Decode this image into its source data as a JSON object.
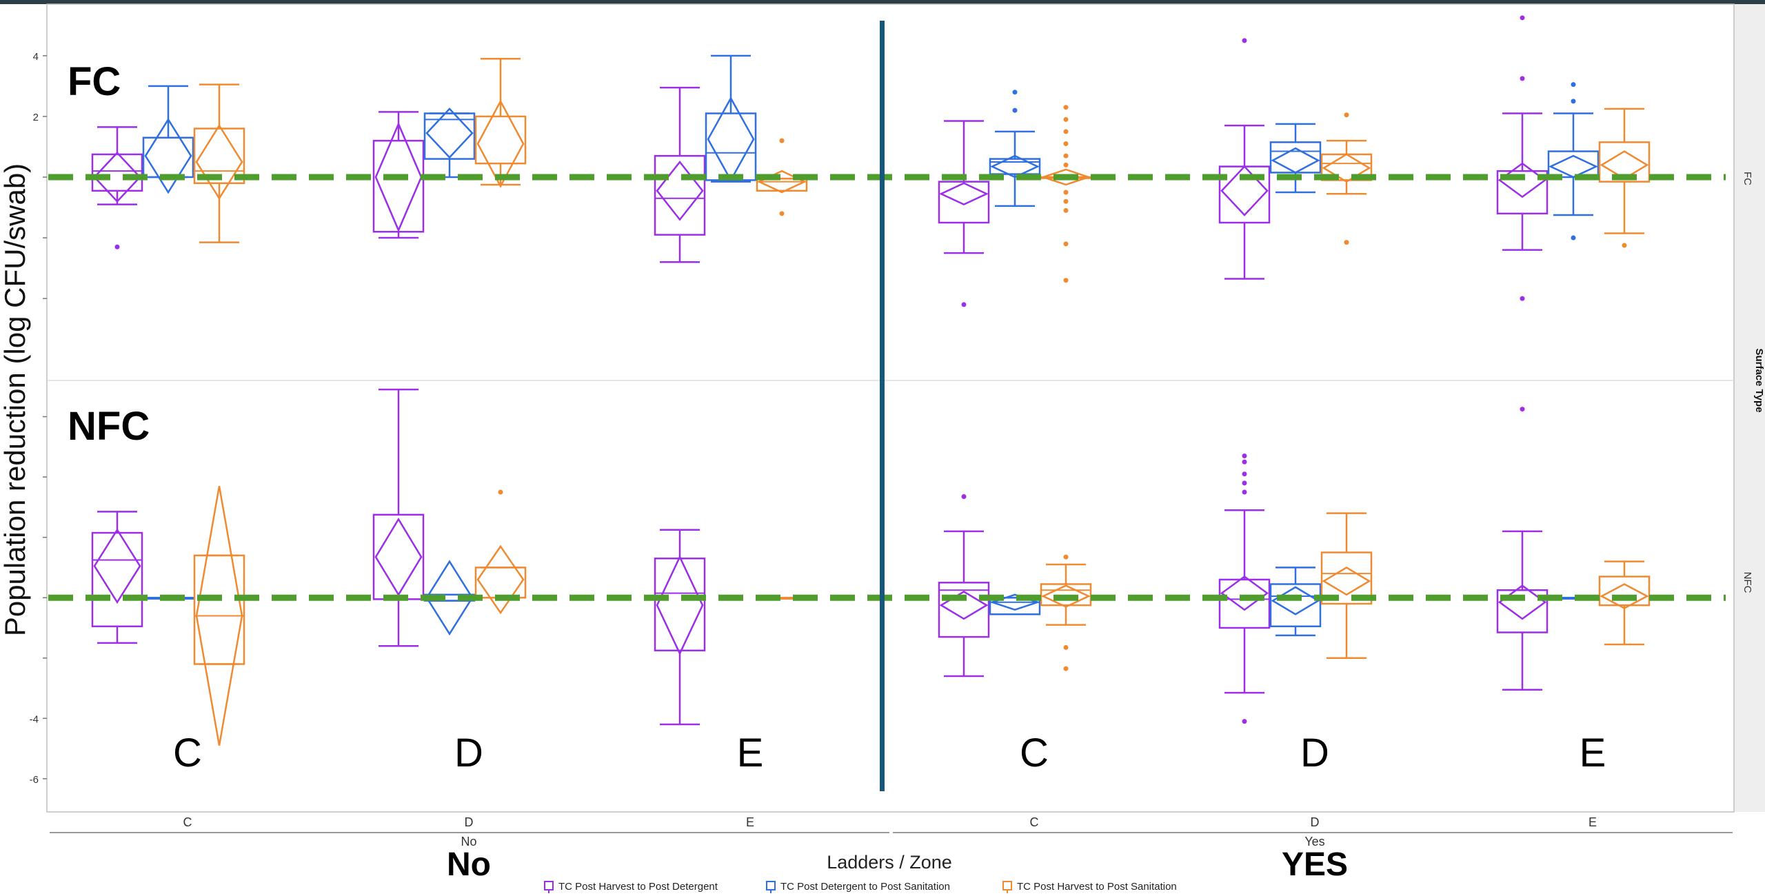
{
  "chart_data": {
    "type": "box",
    "ylabel": "Population reduction (log CFU/swab)",
    "xlabel": "Ladders / Zone",
    "facet_label": "Surface Type",
    "y_ticks": [
      4,
      2,
      -4,
      -6
    ],
    "ylim_rows": {
      "FC": [
        -6.7,
        5.7
      ],
      "NFC": [
        -7.1,
        7.2
      ]
    },
    "baseline_y": 0,
    "groups": [
      {
        "value": "No",
        "title": "No",
        "big_title": "No"
      },
      {
        "value": "Yes",
        "title": "Yes",
        "big_title": "YES"
      }
    ],
    "zones": [
      {
        "group": "No",
        "zone": "C",
        "big_label": "C"
      },
      {
        "group": "No",
        "zone": "D",
        "big_label": "D"
      },
      {
        "group": "No",
        "zone": "E",
        "big_label": "E"
      },
      {
        "group": "Yes",
        "zone": "C",
        "big_label": "C"
      },
      {
        "group": "Yes",
        "zone": "D",
        "big_label": "D"
      },
      {
        "group": "Yes",
        "zone": "E",
        "big_label": "E"
      }
    ],
    "rows": [
      {
        "name": "FC",
        "label": "FC",
        "facet_label": "FC"
      },
      {
        "name": "NFC",
        "label": "NFC",
        "facet_label": "NFC"
      }
    ],
    "series": [
      {
        "name": "TC Post Harvest to Post Detergent",
        "color": "#9b2ee6"
      },
      {
        "name": "TC Post Detergent to Post Sanitation",
        "color": "#2f6fe0"
      },
      {
        "name": "TC Post Harvest to Post Sanitation",
        "color": "#f08a30"
      }
    ],
    "boxes": [
      {
        "row": "FC",
        "zone": 0,
        "series": 0,
        "wl": -0.9,
        "q1": -0.45,
        "median": 0.2,
        "q3": 0.75,
        "wh": 1.65,
        "mean": 0.0,
        "ci": 0.8,
        "outliers": [
          -2.3
        ]
      },
      {
        "row": "FC",
        "zone": 0,
        "series": 1,
        "wl": 0.0,
        "q1": 0.0,
        "median": 1.3,
        "q3": 1.3,
        "wh": 3.0,
        "mean": 0.7,
        "ci": 1.2,
        "outliers": []
      },
      {
        "row": "FC",
        "zone": 0,
        "series": 2,
        "wl": -2.15,
        "q1": -0.2,
        "median": 0.2,
        "q3": 1.6,
        "wh": 3.05,
        "mean": 0.5,
        "ci": 1.2,
        "outliers": []
      },
      {
        "row": "FC",
        "zone": 1,
        "series": 0,
        "wl": -2.0,
        "q1": -1.8,
        "median": 1.2,
        "q3": 1.2,
        "wh": 2.15,
        "mean": 0.0,
        "ci": 1.75,
        "outliers": []
      },
      {
        "row": "FC",
        "zone": 1,
        "series": 1,
        "wl": 0.0,
        "q1": 0.6,
        "median": 1.9,
        "q3": 2.1,
        "wh": 2.1,
        "mean": 1.45,
        "ci": 0.8,
        "outliers": []
      },
      {
        "row": "FC",
        "zone": 1,
        "series": 2,
        "wl": -0.25,
        "q1": 0.45,
        "median": 0.45,
        "q3": 2.0,
        "wh": 3.9,
        "mean": 1.1,
        "ci": 1.4,
        "outliers": []
      },
      {
        "row": "FC",
        "zone": 2,
        "series": 0,
        "wl": -2.8,
        "q1": -1.9,
        "median": -0.7,
        "q3": 0.7,
        "wh": 2.95,
        "mean": -0.45,
        "ci": 0.95,
        "outliers": []
      },
      {
        "row": "FC",
        "zone": 2,
        "series": 1,
        "wl": -0.15,
        "q1": -0.1,
        "median": 0.8,
        "q3": 2.1,
        "wh": 4.0,
        "mean": 1.25,
        "ci": 1.35,
        "outliers": []
      },
      {
        "row": "FC",
        "zone": 2,
        "series": 2,
        "wl": -0.45,
        "q1": -0.45,
        "median": -0.15,
        "q3": -0.05,
        "wh": -0.05,
        "mean": -0.15,
        "ci": 0.35,
        "outliers": [
          1.2,
          -1.2
        ]
      },
      {
        "row": "FC",
        "zone": 3,
        "series": 0,
        "wl": -2.5,
        "q1": -1.5,
        "median": -0.15,
        "q3": -0.15,
        "wh": 1.85,
        "mean": -0.55,
        "ci": 0.35,
        "outliers": [
          -4.2
        ]
      },
      {
        "row": "FC",
        "zone": 3,
        "series": 1,
        "wl": -0.95,
        "q1": 0.1,
        "median": 0.5,
        "q3": 0.6,
        "wh": 1.5,
        "mean": 0.35,
        "ci": 0.35,
        "outliers": [
          2.8,
          2.2
        ]
      },
      {
        "row": "FC",
        "zone": 3,
        "series": 2,
        "wl": 0.0,
        "q1": 0.0,
        "median": 0.0,
        "q3": 0.0,
        "wh": 0.0,
        "mean": 0.0,
        "ci": 0.25,
        "outliers": [
          2.3,
          1.9,
          1.5,
          1.1,
          0.7,
          0.4,
          -0.5,
          -0.8,
          -1.1,
          -2.2,
          -3.4
        ]
      },
      {
        "row": "FC",
        "zone": 4,
        "series": 0,
        "wl": -3.35,
        "q1": -1.5,
        "median": 0.35,
        "q3": 0.35,
        "wh": 1.7,
        "mean": -0.45,
        "ci": 0.8,
        "outliers": [
          4.5
        ]
      },
      {
        "row": "FC",
        "zone": 4,
        "series": 1,
        "wl": -0.5,
        "q1": 0.15,
        "median": 0.85,
        "q3": 1.15,
        "wh": 1.75,
        "mean": 0.55,
        "ci": 0.4,
        "outliers": []
      },
      {
        "row": "FC",
        "zone": 4,
        "series": 2,
        "wl": -0.55,
        "q1": -0.1,
        "median": 0.45,
        "q3": 0.75,
        "wh": 1.2,
        "mean": 0.3,
        "ci": 0.45,
        "outliers": [
          2.05,
          -2.15
        ]
      },
      {
        "row": "FC",
        "zone": 5,
        "series": 0,
        "wl": -2.4,
        "q1": -1.2,
        "median": 0.2,
        "q3": 0.2,
        "wh": 2.1,
        "mean": -0.1,
        "ci": 0.55,
        "outliers": [
          5.25,
          3.25,
          -4.0
        ]
      },
      {
        "row": "FC",
        "zone": 5,
        "series": 1,
        "wl": -1.25,
        "q1": 0.0,
        "median": 0.0,
        "q3": 0.85,
        "wh": 2.1,
        "mean": 0.35,
        "ci": 0.35,
        "outliers": [
          3.05,
          2.5,
          -2.0
        ]
      },
      {
        "row": "FC",
        "zone": 5,
        "series": 2,
        "wl": -1.85,
        "q1": -0.15,
        "median": -0.15,
        "q3": 1.15,
        "wh": 2.25,
        "mean": 0.4,
        "ci": 0.45,
        "outliers": [
          -2.25
        ]
      },
      {
        "row": "NFC",
        "zone": 0,
        "series": 0,
        "wl": -1.5,
        "q1": -0.95,
        "median": 1.25,
        "q3": 2.15,
        "wh": 2.85,
        "mean": 1.05,
        "ci": 1.2,
        "outliers": []
      },
      {
        "row": "NFC",
        "zone": 0,
        "series": 1,
        "wl": 0.0,
        "q1": 0.0,
        "median": 0.0,
        "q3": 0.0,
        "wh": 0.0,
        "mean": 0.0,
        "ci": 0.0,
        "outliers": []
      },
      {
        "row": "NFC",
        "zone": 0,
        "series": 2,
        "wl": -2.2,
        "q1": -2.2,
        "median": -0.6,
        "q3": 1.4,
        "wh": 1.4,
        "mean": -0.6,
        "ci": 4.3,
        "outliers": []
      },
      {
        "row": "NFC",
        "zone": 1,
        "series": 0,
        "wl": -1.6,
        "q1": -0.05,
        "median": -0.05,
        "q3": 2.75,
        "wh": 6.9,
        "mean": 1.35,
        "ci": 1.25,
        "outliers": []
      },
      {
        "row": "NFC",
        "zone": 1,
        "series": 1,
        "wl": -0.1,
        "q1": -0.1,
        "median": 0.1,
        "q3": 0.1,
        "wh": 0.1,
        "mean": 0.0,
        "ci": 1.2,
        "outliers": []
      },
      {
        "row": "NFC",
        "zone": 1,
        "series": 2,
        "wl": 0.0,
        "q1": 0.0,
        "median": 0.0,
        "q3": 1.0,
        "wh": 1.0,
        "mean": 0.6,
        "ci": 1.1,
        "outliers": [
          3.5
        ]
      },
      {
        "row": "NFC",
        "zone": 2,
        "series": 0,
        "wl": -4.2,
        "q1": -1.75,
        "median": 0.15,
        "q3": 1.3,
        "wh": 2.25,
        "mean": -0.25,
        "ci": 1.6,
        "outliers": []
      },
      {
        "row": "NFC",
        "zone": 2,
        "series": 2,
        "wl": 0.0,
        "q1": 0.0,
        "median": 0.0,
        "q3": 0.0,
        "wh": 0.0,
        "mean": 0.0,
        "ci": 0.0,
        "outliers": []
      },
      {
        "row": "NFC",
        "zone": 3,
        "series": 0,
        "wl": -2.6,
        "q1": -1.3,
        "median": 0.25,
        "q3": 0.5,
        "wh": 2.2,
        "mean": -0.25,
        "ci": 0.45,
        "outliers": [
          3.35
        ]
      },
      {
        "row": "NFC",
        "zone": 3,
        "series": 1,
        "wl": -0.55,
        "q1": -0.55,
        "median": -0.15,
        "q3": 0.0,
        "wh": 0.0,
        "mean": -0.15,
        "ci": 0.25,
        "outliers": []
      },
      {
        "row": "NFC",
        "zone": 3,
        "series": 2,
        "wl": -0.9,
        "q1": -0.25,
        "median": 0.25,
        "q3": 0.45,
        "wh": 1.1,
        "mean": 0.05,
        "ci": 0.35,
        "outliers": [
          1.35,
          -1.65,
          -2.35
        ]
      },
      {
        "row": "NFC",
        "zone": 4,
        "series": 0,
        "wl": -3.15,
        "q1": -1.0,
        "median": -0.05,
        "q3": 0.6,
        "wh": 2.9,
        "mean": 0.15,
        "ci": 0.55,
        "outliers": [
          4.7,
          4.5,
          4.1,
          3.8,
          3.5,
          -4.1
        ]
      },
      {
        "row": "NFC",
        "zone": 4,
        "series": 1,
        "wl": -1.25,
        "q1": -0.95,
        "median": 0.05,
        "q3": 0.45,
        "wh": 1.0,
        "mean": -0.1,
        "ci": 0.45,
        "outliers": []
      },
      {
        "row": "NFC",
        "zone": 4,
        "series": 2,
        "wl": -2.0,
        "q1": -0.2,
        "median": 0.8,
        "q3": 1.5,
        "wh": 2.8,
        "mean": 0.55,
        "ci": 0.45,
        "outliers": []
      },
      {
        "row": "NFC",
        "zone": 5,
        "series": 0,
        "wl": -3.05,
        "q1": -1.15,
        "median": 0.25,
        "q3": 0.25,
        "wh": 2.2,
        "mean": -0.15,
        "ci": 0.55,
        "outliers": [
          6.25
        ]
      },
      {
        "row": "NFC",
        "zone": 5,
        "series": 1,
        "wl": 0.0,
        "q1": 0.0,
        "median": 0.0,
        "q3": 0.0,
        "wh": 0.0,
        "mean": 0.0,
        "ci": 0.0,
        "outliers": []
      },
      {
        "row": "NFC",
        "zone": 5,
        "series": 2,
        "wl": -1.55,
        "q1": -0.25,
        "median": -0.25,
        "q3": 0.7,
        "wh": 1.2,
        "mean": 0.05,
        "ci": 0.4,
        "outliers": []
      }
    ]
  },
  "colors": {
    "baseline": "#4f9d2d",
    "divider": "#17577a",
    "frame": "#bfbfbf",
    "topbar": "#2d3f46",
    "facet_strip": "#eeeeee"
  }
}
